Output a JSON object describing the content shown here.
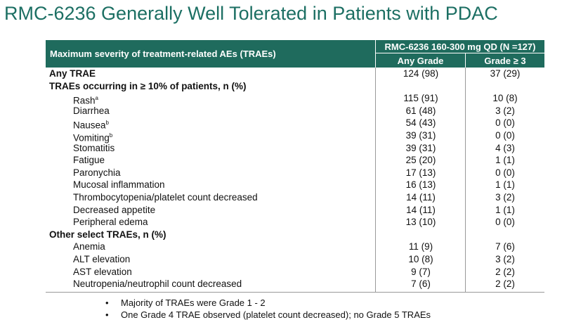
{
  "title": "RMC-6236 Generally Well Tolerated in Patients with PDAC",
  "table": {
    "header": {
      "row_label": "Maximum severity of treatment-related AEs (TRAEs)",
      "group": "RMC-6236 160-300 mg QD (N =127)",
      "columns": [
        "Any Grade",
        "Grade ≥ 3"
      ]
    },
    "rows": [
      {
        "label": "Any TRAE",
        "bold": true,
        "values": [
          "124 (98)",
          "37 (29)"
        ]
      },
      {
        "label": "TRAEs occurring in  ≥ 10% of patients, n (%)",
        "bold": true
      },
      {
        "label": "Rash",
        "sup": "a",
        "values": [
          "115 (91)",
          "10 (8)"
        ]
      },
      {
        "label": "Diarrhea",
        "values": [
          "61 (48)",
          "3 (2)"
        ]
      },
      {
        "label": "Nausea",
        "sup": "b",
        "values": [
          "54 (43)",
          "0 (0)"
        ]
      },
      {
        "label": "Vomiting",
        "sup": "b",
        "values": [
          "39 (31)",
          "0 (0)"
        ]
      },
      {
        "label": "Stomatitis",
        "values": [
          "39 (31)",
          "4 (3)"
        ]
      },
      {
        "label": "Fatigue",
        "values": [
          "25 (20)",
          "1 (1)"
        ]
      },
      {
        "label": "Paronychia",
        "values": [
          "17 (13)",
          "0 (0)"
        ]
      },
      {
        "label": "Mucosal inflammation",
        "values": [
          "16 (13)",
          "1 (1)"
        ]
      },
      {
        "label": "Thrombocytopenia/platelet count decreased",
        "values": [
          "14 (11)",
          "3 (2)"
        ]
      },
      {
        "label": "Decreased appetite",
        "values": [
          "14 (11)",
          "1 (1)"
        ]
      },
      {
        "label": "Peripheral edema",
        "values": [
          "13 (10)",
          "0 (0)"
        ]
      },
      {
        "label": "Other select TRAEs, n (%)",
        "bold": true
      },
      {
        "label": "Anemia",
        "values": [
          "11 (9)",
          "7 (6)"
        ]
      },
      {
        "label": "ALT elevation",
        "values": [
          "10 (8)",
          "3 (2)"
        ]
      },
      {
        "label": "AST elevation",
        "values": [
          "9 (7)",
          "2 (2)"
        ]
      },
      {
        "label": "Neutropenia/neutrophil count decreased",
        "values": [
          "7 (6)",
          "2 (2)"
        ]
      }
    ]
  },
  "footnotes": [
    "Majority of TRAEs were Grade 1 - 2",
    "One Grade 4 TRAE observed (platelet count decreased); no Grade 5 TRAEs"
  ]
}
